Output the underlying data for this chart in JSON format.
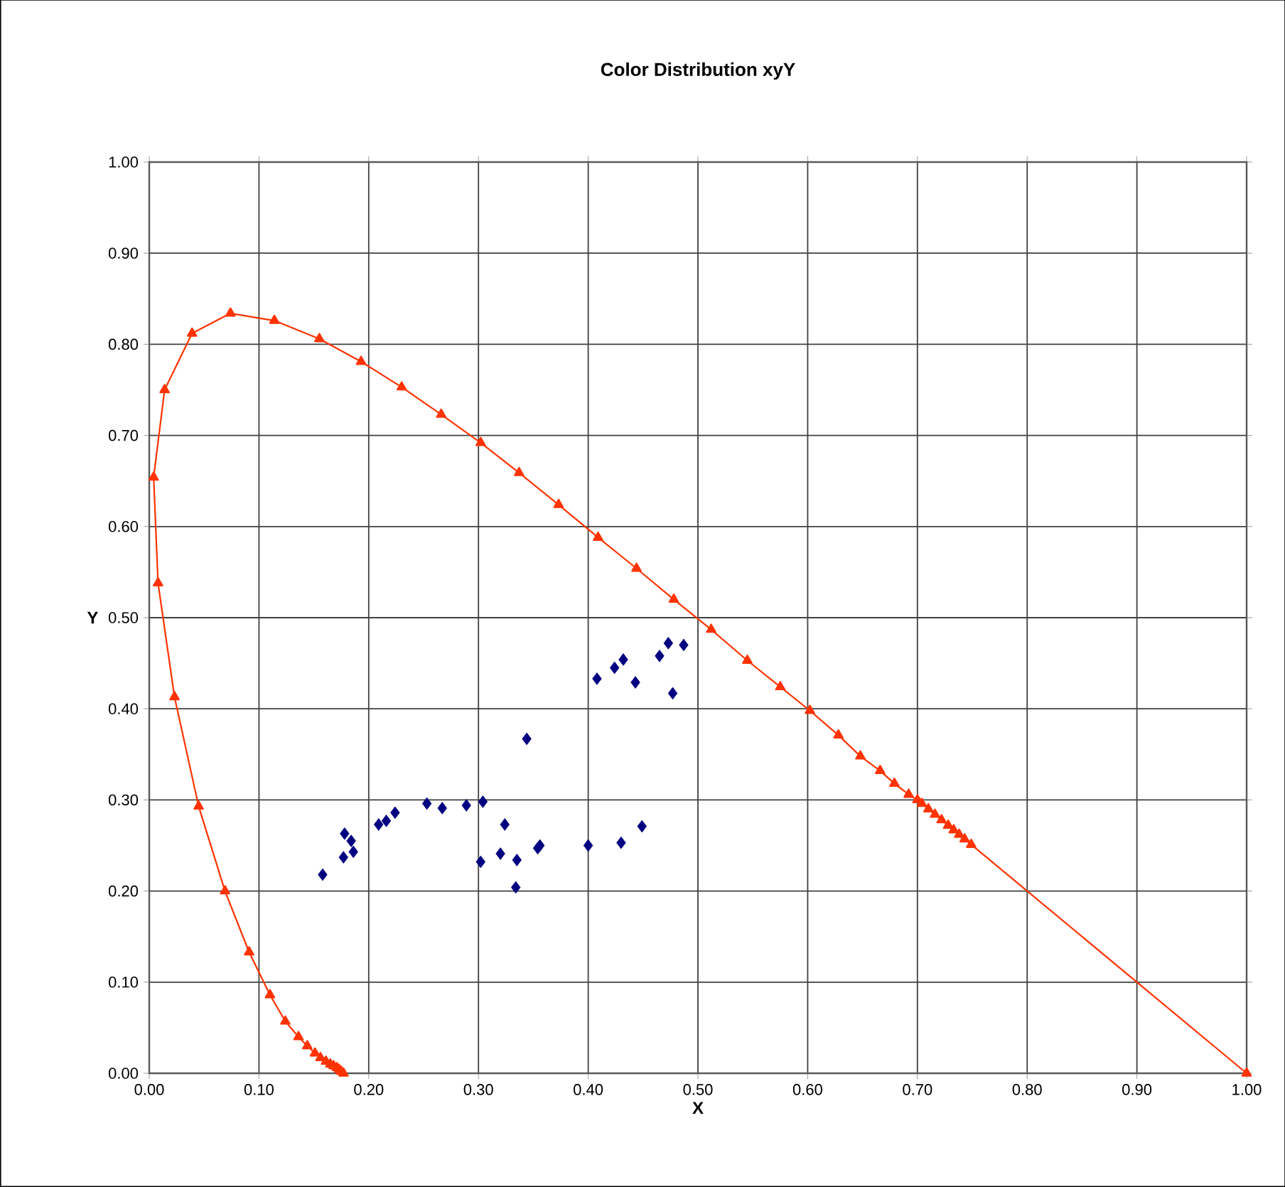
{
  "chart_data": {
    "type": "scatter",
    "title": "Color Distribution xyY",
    "xlabel": "X",
    "ylabel": "Y",
    "xlim": [
      0,
      1
    ],
    "ylim": [
      0,
      1
    ],
    "xticks": [
      {
        "value": 0,
        "label": "0.00"
      },
      {
        "value": 0.1,
        "label": "0.10"
      },
      {
        "value": 0.2,
        "label": "0.20"
      },
      {
        "value": 0.3,
        "label": "0.30"
      },
      {
        "value": 0.4,
        "label": "0.40"
      },
      {
        "value": 0.5,
        "label": "0.50"
      },
      {
        "value": 0.6,
        "label": "0.60"
      },
      {
        "value": 0.7,
        "label": "0.70"
      },
      {
        "value": 0.8,
        "label": "0.80"
      },
      {
        "value": 0.9,
        "label": "0.90"
      },
      {
        "value": 1,
        "label": "1.00"
      }
    ],
    "yticks": [
      {
        "value": 0,
        "label": "0.00"
      },
      {
        "value": 0.1,
        "label": "0.10"
      },
      {
        "value": 0.2,
        "label": "0.20"
      },
      {
        "value": 0.3,
        "label": "0.30"
      },
      {
        "value": 0.4,
        "label": "0.40"
      },
      {
        "value": 0.5,
        "label": "0.50"
      },
      {
        "value": 0.6,
        "label": "0.60"
      },
      {
        "value": 0.7,
        "label": "0.70"
      },
      {
        "value": 0.8,
        "label": "0.80"
      },
      {
        "value": 0.9,
        "label": "0.90"
      },
      {
        "value": 1,
        "label": "1.00"
      }
    ],
    "grid": true,
    "series": [
      {
        "type": "line",
        "color": "#ff3300",
        "marker": "triangle",
        "line_style": "solid",
        "x": [
          0.177,
          0.175,
          0.173,
          0.171,
          0.168,
          0.165,
          0.161,
          0.156,
          0.151,
          0.144,
          0.136,
          0.124,
          0.11,
          0.091,
          0.069,
          0.045,
          0.023,
          0.008,
          0.004,
          0.014,
          0.039,
          0.074,
          0.114,
          0.155,
          0.193,
          0.23,
          0.266,
          0.302,
          0.337,
          0.373,
          0.409,
          0.444,
          0.478,
          0.512,
          0.545,
          0.575,
          0.602,
          0.628,
          0.648,
          0.666,
          0.679,
          0.692,
          0.7,
          0.704,
          0.71,
          0.716,
          0.722,
          0.728,
          0.733,
          0.738,
          0.743,
          0.749,
          1.0
        ],
        "values": [
          0.0,
          0.002,
          0.004,
          0.006,
          0.008,
          0.01,
          0.013,
          0.017,
          0.022,
          0.03,
          0.04,
          0.057,
          0.086,
          0.133,
          0.2,
          0.293,
          0.413,
          0.538,
          0.654,
          0.75,
          0.812,
          0.834,
          0.826,
          0.806,
          0.781,
          0.753,
          0.723,
          0.692,
          0.659,
          0.624,
          0.588,
          0.554,
          0.52,
          0.487,
          0.453,
          0.424,
          0.398,
          0.371,
          0.348,
          0.332,
          0.318,
          0.306,
          0.3,
          0.296,
          0.29,
          0.284,
          0.278,
          0.272,
          0.267,
          0.262,
          0.257,
          0.251,
          0.0
        ]
      },
      {
        "color": "#000080",
        "marker": "diamond",
        "x": [
          0.158,
          0.178,
          0.184,
          0.177,
          0.186,
          0.209,
          0.216,
          0.224,
          0.253,
          0.267,
          0.289,
          0.304,
          0.324,
          0.302,
          0.32,
          0.335,
          0.334,
          0.356,
          0.354,
          0.4,
          0.43,
          0.449,
          0.344,
          0.408,
          0.424,
          0.432,
          0.443,
          0.465,
          0.473,
          0.487,
          0.477
        ],
        "values": [
          0.218,
          0.263,
          0.255,
          0.237,
          0.243,
          0.273,
          0.277,
          0.286,
          0.296,
          0.291,
          0.294,
          0.298,
          0.273,
          0.232,
          0.241,
          0.234,
          0.204,
          0.25,
          0.247,
          0.25,
          0.253,
          0.271,
          0.367,
          0.433,
          0.445,
          0.454,
          0.429,
          0.458,
          0.472,
          0.47,
          0.417
        ]
      }
    ]
  }
}
